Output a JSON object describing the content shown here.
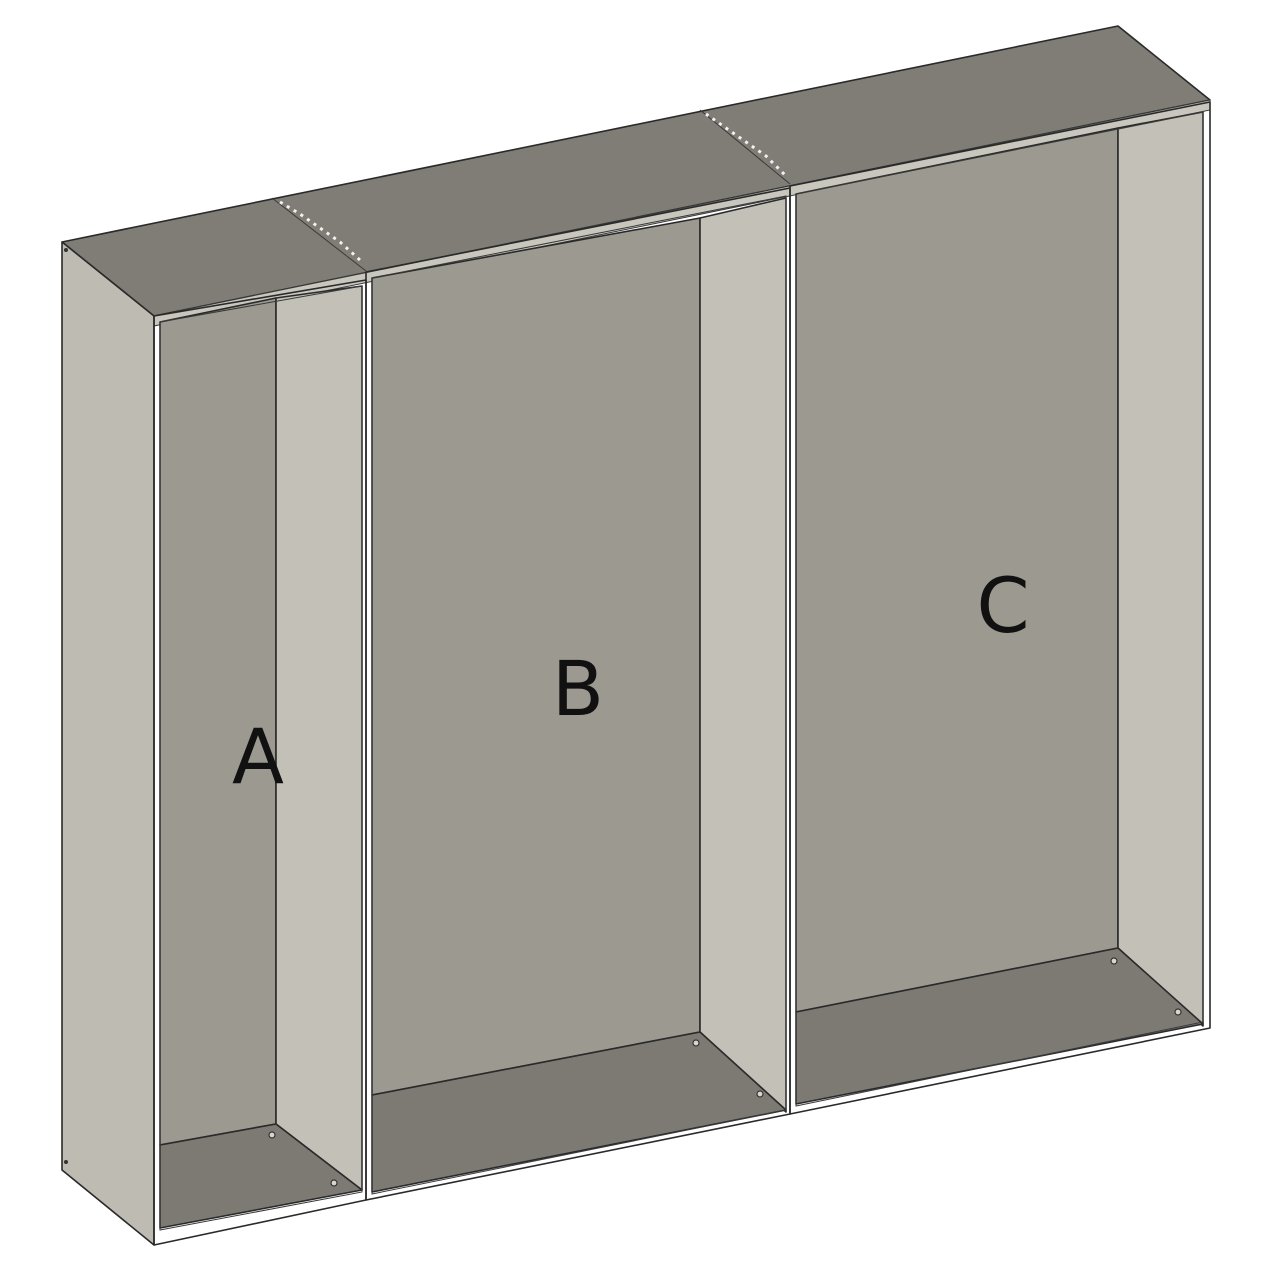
{
  "labels": {
    "a": "A",
    "b": "B",
    "c": "C"
  },
  "colors": {
    "top_panel": "#7f7d76",
    "back_panel": "#9b9990",
    "side_panel_light": "#c2c0b7",
    "side_face": "#bdbbb2",
    "bottom_panel": "#7c7a73",
    "edge": "#2a2a2a",
    "background": "#ffffff"
  }
}
